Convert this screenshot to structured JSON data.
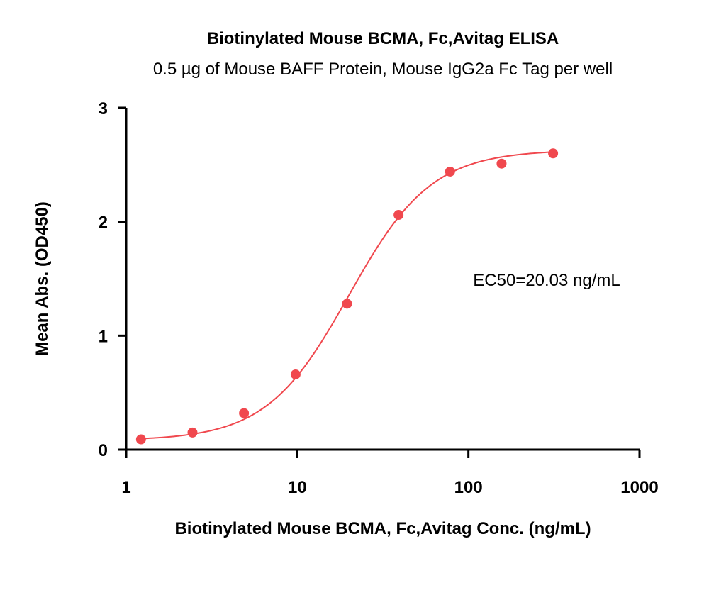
{
  "chart_data": {
    "type": "scatter",
    "title": "Biotinylated Mouse BCMA, Fc,Avitag ELISA",
    "subtitle": "0.5 µg of Mouse BAFF Protein, Mouse IgG2a Fc Tag per well",
    "xlabel": "Biotinylated Mouse BCMA, Fc,Avitag Conc. (ng/mL)",
    "ylabel": "Mean Abs. (OD450)",
    "xscale": "log",
    "xlim": [
      1,
      1000
    ],
    "ylim": [
      0,
      3
    ],
    "xticks": [
      1,
      10,
      100,
      1000
    ],
    "xtick_labels": [
      "1",
      "10",
      "100",
      "1000"
    ],
    "yticks": [
      0,
      1,
      2,
      3
    ],
    "ytick_labels": [
      "0",
      "1",
      "2",
      "3"
    ],
    "grid": false,
    "color": "#f0484e",
    "annotation": "EC50=20.03 ng/mL",
    "series": [
      {
        "x": [
          1.22,
          2.44,
          4.88,
          9.77,
          19.53,
          39.06,
          78.13,
          156.25,
          312.5
        ],
        "y": [
          0.09,
          0.15,
          0.32,
          0.66,
          1.28,
          2.06,
          2.44,
          2.51,
          2.6
        ]
      }
    ],
    "fit": {
      "model": "4PL",
      "bottom": 0.08,
      "top": 2.63,
      "ec50": 20.03,
      "hill": 1.8
    }
  }
}
